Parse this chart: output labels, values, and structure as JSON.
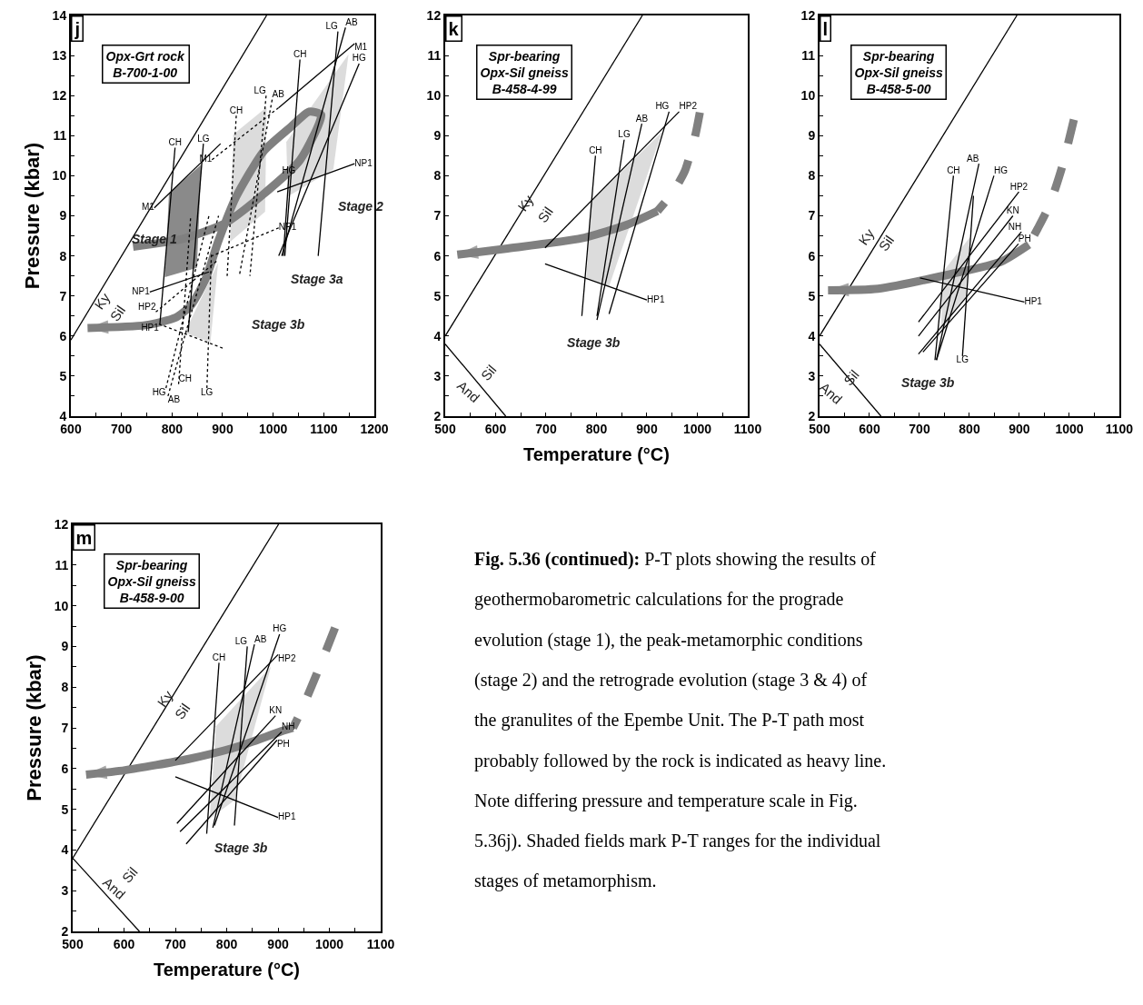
{
  "chart_data": [
    {
      "type": "line",
      "title": "j",
      "ylabel": "Pressure (kbar)",
      "xlim": [
        600,
        1200
      ],
      "ylim": [
        4,
        14
      ],
      "xticks": [
        600,
        {
          "value": 650,
          "label": null
        },
        700,
        {
          "value": 750,
          "label": null
        },
        800,
        {
          "value": 850,
          "label": null
        },
        900,
        {
          "value": 950,
          "label": null
        },
        1000,
        {
          "value": 1050,
          "label": null
        },
        1100,
        {
          "value": 1150,
          "label": null
        },
        1200
      ],
      "yticks": [
        4,
        {
          "value": 4.5,
          "label": null
        },
        5,
        {
          "value": 5.5,
          "label": null
        },
        6,
        {
          "value": 6.5,
          "label": null
        },
        7,
        {
          "value": 7.5,
          "label": null
        },
        8,
        {
          "value": 8.5,
          "label": null
        },
        9,
        {
          "value": 9.5,
          "label": null
        },
        10,
        {
          "value": 10.5,
          "label": null
        },
        11,
        {
          "value": 11.5,
          "label": null
        },
        12,
        {
          "value": 12.5,
          "label": null
        },
        13,
        {
          "value": 13.5,
          "label": null
        },
        14
      ],
      "annotations": [
        "Opx-Grt rock\nB-700-1-00",
        "Stage 1",
        "Stage 2",
        "Stage 3a",
        "Stage 3b",
        "Ky",
        "Sil"
      ],
      "series": [
        {
          "type": "line",
          "color": "#000000",
          "line_style": "solid",
          "x": [
            600,
            987
          ],
          "values": [
            5.9,
            14
          ]
        },
        {
          "type": "area",
          "color": "#8a8a8a",
          "x": [
            794,
            858,
            849,
            786
          ],
          "values": [
            9.56,
            10.28,
            7.7,
            7.47
          ]
        },
        {
          "type": "area",
          "color": "#dcdcdc",
          "x": [
            921,
            987,
            984,
            915
          ],
          "values": [
            11.03,
            11.71,
            9.1,
            8.35
          ]
        },
        {
          "type": "area",
          "color": "#dcdcdc",
          "x": [
            1026,
            1149,
            1119,
            1029
          ],
          "values": [
            10.84,
            13.03,
            10.16,
            9.48
          ]
        },
        {
          "type": "area",
          "color": "#dcdcdc",
          "x": [
            825,
            891,
            876
          ],
          "values": [
            6.08,
            7.82,
            5.85
          ]
        },
        {
          "type": "line",
          "color": "#808080",
          "line_style": "solid",
          "x": [
            723,
            819,
            903,
            975,
            1053,
            1095,
            1071,
            1035,
            981,
            927,
            891,
            867,
            837,
            807,
            747,
            633
          ],
          "values": [
            8.23,
            8.42,
            8.8,
            9.48,
            10.39,
            11.52,
            11.6,
            11.22,
            10.61,
            9.48,
            8.35,
            7.44,
            6.76,
            6.46,
            6.27,
            6.2
          ]
        },
        {
          "type": "line",
          "name": "CH",
          "color": "#000000",
          "line_style": "solid",
          "x": [
            806,
            776
          ],
          "values": [
            10.7,
            6.3
          ]
        },
        {
          "type": "line",
          "name": "LG",
          "color": "#000000",
          "line_style": "solid",
          "x": [
            862,
            832
          ],
          "values": [
            10.8,
            6.1
          ]
        },
        {
          "type": "line",
          "name": "M1",
          "color": "#000000",
          "line_style": "solid",
          "x": [
            765,
            896
          ],
          "values": [
            9.2,
            10.8
          ]
        },
        {
          "type": "line",
          "name": "NP1",
          "color": "#000000",
          "line_style": "solid",
          "x": [
            756,
            873
          ],
          "values": [
            7.1,
            7.6
          ]
        },
        {
          "type": "line",
          "name": "HP1",
          "color": "#000000",
          "line_style": "dotted",
          "x": [
            774,
            900
          ],
          "values": [
            6.3,
            5.7
          ]
        },
        {
          "type": "line",
          "name": "HP2",
          "color": "#000000",
          "line_style": "dotted",
          "x": [
            768,
            891
          ],
          "values": [
            6.6,
            7.9
          ]
        },
        {
          "type": "line",
          "name": "HG",
          "color": "#000000",
          "line_style": "dotted",
          "x": [
            788,
            873
          ],
          "values": [
            4.7,
            9.0
          ]
        },
        {
          "type": "line",
          "name": "AB",
          "color": "#000000",
          "line_style": "dotted",
          "x": [
            792,
            892
          ],
          "values": [
            4.5,
            9.0
          ]
        },
        {
          "type": "line",
          "name": "CH",
          "color": "#000000",
          "line_style": "dotted",
          "x": [
            813,
            837
          ],
          "values": [
            4.8,
            9.0
          ]
        },
        {
          "type": "line",
          "name": "LG",
          "color": "#000000",
          "line_style": "dotted",
          "x": [
            869,
            878
          ],
          "values": [
            4.7,
            8.1
          ]
        },
        {
          "type": "line",
          "name": "CH",
          "color": "#000000",
          "line_style": "dotted",
          "x": [
            927,
            909
          ],
          "values": [
            11.5,
            7.5
          ]
        },
        {
          "type": "line",
          "name": "LG",
          "color": "#000000",
          "line_style": "dotted",
          "x": [
            986,
            954
          ],
          "values": [
            12.0,
            7.5
          ]
        },
        {
          "type": "line",
          "name": "AB",
          "color": "#000000",
          "line_style": "dotted",
          "x": [
            998,
            933
          ],
          "values": [
            11.9,
            7.5
          ]
        },
        {
          "type": "line",
          "name": "M1",
          "color": "#000000",
          "line_style": "dotted",
          "x": [
            879,
            1011
          ],
          "values": [
            10.4,
            11.7
          ]
        },
        {
          "type": "line",
          "name": "NP1",
          "color": "#000000",
          "line_style": "dotted",
          "x": [
            1011,
            879
          ],
          "values": [
            8.7,
            8.0
          ]
        },
        {
          "type": "line",
          "name": "CH",
          "color": "#000000",
          "line_style": "solid",
          "x": [
            1053,
            1023
          ],
          "values": [
            12.9,
            8.0
          ]
        },
        {
          "type": "line",
          "name": "LG",
          "color": "#000000",
          "line_style": "solid",
          "x": [
            1128,
            1089
          ],
          "values": [
            13.6,
            8.0
          ]
        },
        {
          "type": "line",
          "name": "AB",
          "color": "#000000",
          "line_style": "solid",
          "x": [
            1143,
            1017
          ],
          "values": [
            13.7,
            8.0
          ]
        },
        {
          "type": "line",
          "name": "HG",
          "color": "#000000",
          "line_style": "solid",
          "x": [
            1170,
            1011
          ],
          "values": [
            12.8,
            8.0
          ]
        },
        {
          "type": "line",
          "name": "HG",
          "color": "#000000",
          "line_style": "solid",
          "x": [
            1031,
            1020
          ],
          "values": [
            10.0,
            8.0
          ]
        },
        {
          "type": "line",
          "name": "M1",
          "color": "#000000",
          "line_style": "solid",
          "x": [
            1161,
            1011
          ],
          "values": [
            13.3,
            11.7
          ]
        },
        {
          "type": "line",
          "name": "NP1",
          "color": "#000000",
          "line_style": "solid",
          "x": [
            1161,
            1008
          ],
          "values": [
            10.3,
            9.6
          ]
        }
      ]
    },
    {
      "type": "line",
      "title": "k",
      "xlabel": "Temperature (°C)",
      "xlim": [
        500,
        1100
      ],
      "ylim": [
        2,
        12
      ],
      "xticks": [
        500,
        {
          "value": 550,
          "label": null
        },
        600,
        {
          "value": 650,
          "label": null
        },
        700,
        {
          "value": 750,
          "label": null
        },
        800,
        {
          "value": 850,
          "label": null
        },
        900,
        {
          "value": 950,
          "label": null
        },
        1000,
        {
          "value": 1050,
          "label": null
        },
        1100
      ],
      "yticks": [
        2,
        {
          "value": 2.5,
          "label": null
        },
        3,
        {
          "value": 3.5,
          "label": null
        },
        4,
        {
          "value": 4.5,
          "label": null
        },
        5,
        {
          "value": 5.5,
          "label": null
        },
        6,
        {
          "value": 6.5,
          "label": null
        },
        7,
        {
          "value": 7.5,
          "label": null
        },
        8,
        {
          "value": 8.5,
          "label": null
        },
        9,
        {
          "value": 9.5,
          "label": null
        },
        10,
        {
          "value": 10.5,
          "label": null
        },
        11,
        {
          "value": 11.5,
          "label": null
        },
        12
      ],
      "annotations": [
        "Spr-bearing\nOpx-Sil gneiss\nB-458-4-99",
        "Stage 3b",
        "Ky",
        "Sil",
        "Sil",
        "And"
      ],
      "series": [
        {
          "type": "line",
          "color": "#000000",
          "line_style": "solid",
          "x": [
            500,
            891
          ],
          "values": [
            4.0,
            12
          ]
        },
        {
          "type": "line",
          "color": "#000000",
          "line_style": "solid",
          "x": [
            500,
            620
          ],
          "values": [
            3.8,
            2.0
          ]
        },
        {
          "type": "area",
          "color": "#dcdcdc",
          "x": [
            790,
            930,
            825,
            780
          ],
          "values": [
            7.37,
            9.09,
            5.24,
            5.46
          ]
        },
        {
          "type": "line",
          "color": "#808080",
          "line_style": "dashed",
          "x": [
            1005,
            996,
            975,
            951,
            921
          ],
          "values": [
            9.58,
            9.01,
            8.11,
            7.58,
            7.12
          ]
        },
        {
          "type": "line",
          "color": "#808080",
          "line_style": "solid",
          "x": [
            921,
            861,
            771,
            620,
            524
          ],
          "values": [
            7.12,
            6.78,
            6.44,
            6.18,
            6.03
          ]
        },
        {
          "type": "line",
          "name": "CH",
          "color": "#000000",
          "line_style": "solid",
          "x": [
            798,
            771
          ],
          "values": [
            8.5,
            4.5
          ]
        },
        {
          "type": "line",
          "name": "LG",
          "color": "#000000",
          "line_style": "solid",
          "x": [
            855,
            801
          ],
          "values": [
            8.9,
            4.5
          ]
        },
        {
          "type": "line",
          "name": "AB",
          "color": "#000000",
          "line_style": "solid",
          "x": [
            890,
            801
          ],
          "values": [
            9.3,
            4.4
          ]
        },
        {
          "type": "line",
          "name": "HG",
          "color": "#000000",
          "line_style": "solid",
          "x": [
            944,
            825
          ],
          "values": [
            9.6,
            4.55
          ]
        },
        {
          "type": "line",
          "name": "HP2",
          "color": "#000000",
          "line_style": "solid",
          "x": [
            964,
            698
          ],
          "values": [
            9.6,
            6.2
          ]
        },
        {
          "type": "line",
          "name": "HP1",
          "color": "#000000",
          "line_style": "solid",
          "x": [
            900,
            698
          ],
          "values": [
            4.9,
            5.8
          ]
        }
      ]
    },
    {
      "type": "line",
      "title": "l",
      "xlim": [
        500,
        1100
      ],
      "ylim": [
        2,
        12
      ],
      "xticks": [
        500,
        {
          "value": 550,
          "label": null
        },
        600,
        {
          "value": 650,
          "label": null
        },
        700,
        {
          "value": 750,
          "label": null
        },
        800,
        {
          "value": 850,
          "label": null
        },
        900,
        {
          "value": 950,
          "label": null
        },
        1000,
        {
          "value": 1050,
          "label": null
        },
        1100
      ],
      "yticks": [
        2,
        {
          "value": 2.5,
          "label": null
        },
        3,
        {
          "value": 3.5,
          "label": null
        },
        4,
        {
          "value": 4.5,
          "label": null
        },
        5,
        {
          "value": 5.5,
          "label": null
        },
        6,
        {
          "value": 6.5,
          "label": null
        },
        7,
        {
          "value": 7.5,
          "label": null
        },
        8,
        {
          "value": 8.5,
          "label": null
        },
        9,
        {
          "value": 9.5,
          "label": null
        },
        10,
        {
          "value": 10.5,
          "label": null
        },
        11,
        {
          "value": 11.5,
          "label": null
        },
        12
      ],
      "annotations": [
        "Spr-bearing\nOpx-Sil gneiss\nB-458-5-00",
        "Stage 3b",
        "Ky",
        "Sil",
        "Sil",
        "And"
      ],
      "series": [
        {
          "type": "line",
          "color": "#000000",
          "line_style": "solid",
          "x": [
            500,
            895
          ],
          "values": [
            4.0,
            12
          ]
        },
        {
          "type": "line",
          "color": "#000000",
          "line_style": "solid",
          "x": [
            500,
            623
          ],
          "values": [
            3.8,
            2.0
          ]
        },
        {
          "type": "area",
          "color": "#dcdcdc",
          "x": [
            747,
            801,
            792,
            743
          ],
          "values": [
            5.6,
            6.47,
            4.96,
            4.13
          ]
        },
        {
          "type": "line",
          "color": "#808080",
          "line_style": "dashed",
          "x": [
            1009,
            985,
            961,
            937,
            919
          ],
          "values": [
            9.4,
            8.2,
            7.29,
            6.69,
            6.28
          ]
        },
        {
          "type": "line",
          "color": "#808080",
          "line_style": "solid",
          "x": [
            919,
            864,
            768,
            617,
            517
          ],
          "values": [
            6.28,
            5.86,
            5.56,
            5.18,
            5.14
          ]
        },
        {
          "type": "line",
          "name": "CH",
          "color": "#000000",
          "line_style": "solid",
          "x": [
            768,
            731
          ],
          "values": [
            8.0,
            3.4
          ]
        },
        {
          "type": "line",
          "name": "AB",
          "color": "#000000",
          "line_style": "solid",
          "x": [
            819,
            734
          ],
          "values": [
            8.3,
            3.4
          ]
        },
        {
          "type": "line",
          "name": "HG",
          "color": "#000000",
          "line_style": "solid",
          "x": [
            849,
            734
          ],
          "values": [
            8.0,
            3.4
          ]
        },
        {
          "type": "line",
          "name": "LG",
          "color": "#000000",
          "line_style": "solid",
          "x": [
            786,
            808
          ],
          "values": [
            3.5,
            7.5
          ]
        },
        {
          "type": "line",
          "name": "HP2",
          "color": "#000000",
          "line_style": "solid",
          "x": [
            899,
            698
          ],
          "values": [
            7.6,
            4.35
          ]
        },
        {
          "type": "line",
          "name": "KN",
          "color": "#000000",
          "line_style": "solid",
          "x": [
            887,
            698
          ],
          "values": [
            7.0,
            4.0
          ]
        },
        {
          "type": "line",
          "name": "NH",
          "color": "#000000",
          "line_style": "solid",
          "x": [
            904,
            698
          ],
          "values": [
            6.6,
            3.55
          ]
        },
        {
          "type": "line",
          "name": "PH",
          "color": "#000000",
          "line_style": "solid",
          "x": [
            898,
            707
          ],
          "values": [
            6.3,
            3.6
          ]
        },
        {
          "type": "line",
          "name": "HP1",
          "color": "#000000",
          "line_style": "solid",
          "x": [
            910,
            701
          ],
          "values": [
            4.85,
            5.45
          ]
        }
      ]
    },
    {
      "type": "line",
      "title": "m",
      "xlabel": "Temperature (°C)",
      "ylabel": "Pressure (kbar)",
      "xlim": [
        500,
        1100
      ],
      "ylim": [
        2,
        12
      ],
      "xticks": [
        500,
        {
          "value": 550,
          "label": null
        },
        600,
        {
          "value": 650,
          "label": null
        },
        700,
        {
          "value": 750,
          "label": null
        },
        800,
        {
          "value": 850,
          "label": null
        },
        900,
        {
          "value": 950,
          "label": null
        },
        1000,
        {
          "value": 1050,
          "label": null
        },
        1100
      ],
      "yticks": [
        2,
        {
          "value": 2.5,
          "label": null
        },
        3,
        {
          "value": 3.5,
          "label": null
        },
        4,
        {
          "value": 4.5,
          "label": null
        },
        5,
        {
          "value": 5.5,
          "label": null
        },
        6,
        {
          "value": 6.5,
          "label": null
        },
        7,
        {
          "value": 7.5,
          "label": null
        },
        8,
        {
          "value": 8.5,
          "label": null
        },
        9,
        {
          "value": 9.5,
          "label": null
        },
        10,
        {
          "value": 10.5,
          "label": null
        },
        11,
        {
          "value": 11.5,
          "label": null
        },
        12
      ],
      "annotations": [
        "Spr-bearing\nOpx-Sil gneiss\nB-458-9-00",
        "Stage 3b",
        "Ky",
        "Sil",
        "Sil",
        "And"
      ],
      "series": [
        {
          "type": "line",
          "color": "#000000",
          "line_style": "solid",
          "x": [
            500,
            901
          ],
          "values": [
            3.8,
            12
          ]
        },
        {
          "type": "line",
          "color": "#000000",
          "line_style": "solid",
          "x": [
            500,
            630
          ],
          "values": [
            3.8,
            2.0
          ]
        },
        {
          "type": "area",
          "color": "#dcdcdc",
          "x": [
            779,
            886,
            816,
            767
          ],
          "values": [
            7.04,
            8.5,
            5.23,
            4.77
          ]
        },
        {
          "type": "line",
          "color": "#808080",
          "line_style": "dashed",
          "x": [
            1011,
            987,
            962,
            941,
            929
          ],
          "values": [
            9.46,
            8.69,
            7.92,
            7.31,
            7.0
          ]
        },
        {
          "type": "line",
          "color": "#808080",
          "line_style": "solid",
          "x": [
            929,
            907,
            822,
            724,
            602,
            526
          ],
          "values": [
            7.0,
            6.92,
            6.54,
            6.23,
            5.96,
            5.85
          ]
        },
        {
          "type": "line",
          "name": "CH",
          "color": "#000000",
          "line_style": "solid",
          "x": [
            785,
            761
          ],
          "values": [
            8.6,
            4.4
          ]
        },
        {
          "type": "line",
          "name": "LG",
          "color": "#000000",
          "line_style": "solid",
          "x": [
            840,
            815
          ],
          "values": [
            9.0,
            4.6
          ]
        },
        {
          "type": "line",
          "name": "AB",
          "color": "#000000",
          "line_style": "solid",
          "x": [
            854,
            773
          ],
          "values": [
            9.05,
            4.55
          ]
        },
        {
          "type": "line",
          "name": "HG",
          "color": "#000000",
          "line_style": "solid",
          "x": [
            903,
            776
          ],
          "values": [
            9.3,
            4.6
          ]
        },
        {
          "type": "line",
          "name": "HP2",
          "color": "#000000",
          "line_style": "solid",
          "x": [
            900,
            700
          ],
          "values": [
            8.8,
            6.2
          ]
        },
        {
          "type": "line",
          "name": "KN",
          "color": "#000000",
          "line_style": "solid",
          "x": [
            895,
            703
          ],
          "values": [
            7.3,
            4.65
          ]
        },
        {
          "type": "line",
          "name": "NH",
          "color": "#000000",
          "line_style": "solid",
          "x": [
            907,
            709
          ],
          "values": [
            6.9,
            4.45
          ]
        },
        {
          "type": "line",
          "name": "PH",
          "color": "#000000",
          "line_style": "solid",
          "x": [
            898,
            721
          ],
          "values": [
            6.7,
            4.15
          ]
        },
        {
          "type": "line",
          "name": "HP1",
          "color": "#000000",
          "line_style": "solid",
          "x": [
            900,
            700
          ],
          "values": [
            4.8,
            5.8
          ]
        }
      ]
    },
    {
      "type": "other",
      "title": "Fig. 5.36 (continued):",
      "annotations": [
        "P-T plots showing the results of geothermobarometric calculations for the prograde evolution (stage 1), the peak-metamorphic conditions (stage 2) and the retrograde evolution (stage 3 & 4) of the granulites of the Epembe Unit. The P-T path most probably followed by the rock is indicated as heavy line. Note differing pressure and temperature scale in Fig. 5.36j). Shaded fields mark P-T ranges for the individual stages of metamorphism."
      ]
    }
  ]
}
